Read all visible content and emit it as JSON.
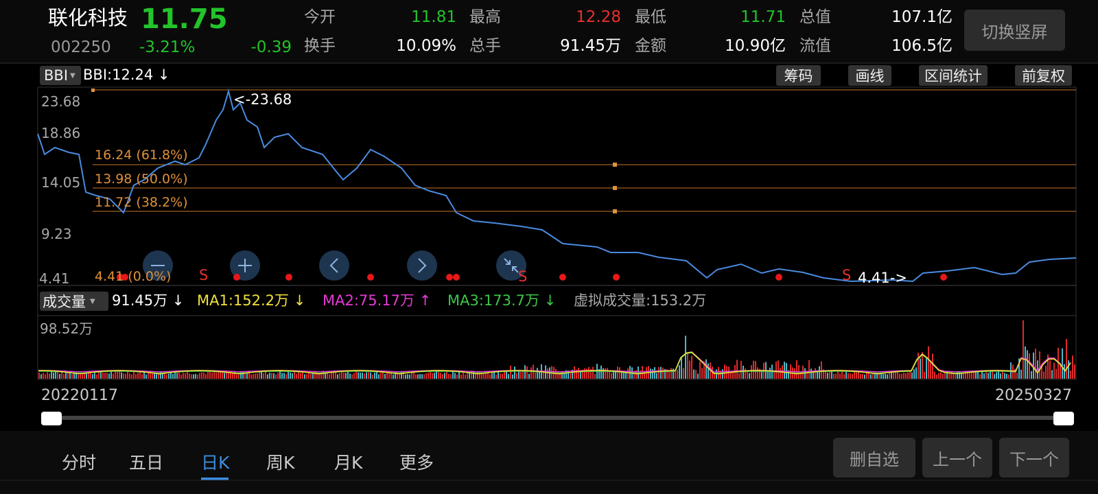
{
  "header": {
    "name": "联化科技",
    "price": "11.75",
    "code": "002250",
    "change_pct": "-3.21%",
    "change": "-0.39",
    "stats": [
      {
        "label": "今开",
        "value": "11.81"
      },
      {
        "label": "最高",
        "value": "12.28"
      },
      {
        "label": "最低",
        "value": "11.71"
      },
      {
        "label": "总值",
        "value": "107.1亿"
      },
      {
        "label": "换手",
        "value": "10.09%"
      },
      {
        "label": "总手",
        "value": "91.45万"
      },
      {
        "label": "金额",
        "value": "10.90亿"
      },
      {
        "label": "流值",
        "value": "106.5亿"
      }
    ],
    "switch_button": "切换竖屏"
  },
  "kline": {
    "indicator": "BBI",
    "indicator_value": "BBI:12.24 ↓",
    "tools": [
      "筹码",
      "画线",
      "区间统计",
      "前复权"
    ],
    "yaxis": [
      "23.68",
      "18.86",
      "14.05",
      "9.23",
      "4.41"
    ],
    "high_marker": "<-23.68",
    "low_marker": "4.41->",
    "fib": [
      "16.24 (61.8%)",
      "13.98 (50.0%)",
      "11.72 (38.2%)",
      "4.41 (0.0%)"
    ],
    "signals": [
      "S",
      "S",
      "S"
    ]
  },
  "volume": {
    "indicator": "成交量",
    "value": "91.45万 ↓",
    "ma1": "MA1:152.2万 ↓",
    "ma2": "MA2:75.17万 ↑",
    "ma3": "MA3:173.7万 ↓",
    "virtual": "虚拟成交量:153.2万",
    "ymax": "98.52万"
  },
  "dates": {
    "start": "20220117",
    "end": "20250327"
  },
  "tabs": [
    "分时",
    "五日",
    "日K",
    "周K",
    "月K",
    "更多"
  ],
  "buttons": [
    "删自选",
    "上一个",
    "下一个"
  ]
}
